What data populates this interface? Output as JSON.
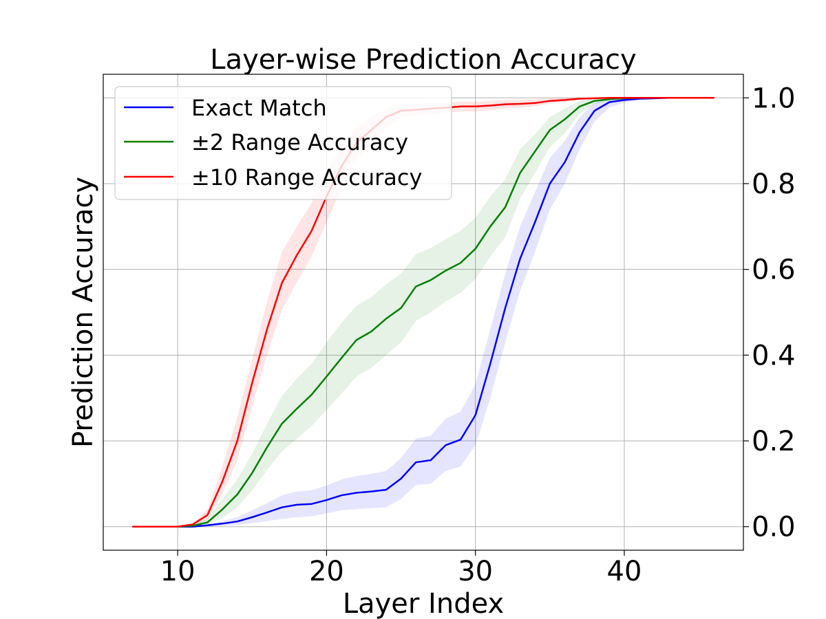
{
  "chart_data": {
    "type": "line",
    "title": "Layer-wise Prediction Accuracy",
    "xlabel": "Layer Index",
    "ylabel": "Prediction Accuracy",
    "xlim": [
      5,
      48
    ],
    "ylim": [
      -0.055,
      1.055
    ],
    "y_axis_side": "right",
    "grid": true,
    "legend_position": "top-left",
    "x_ticks": [
      10,
      20,
      30,
      40
    ],
    "x_tick_labels": [
      "10",
      "20",
      "30",
      "40"
    ],
    "y_ticks": [
      0.0,
      0.2,
      0.4,
      0.6,
      0.8,
      1.0
    ],
    "y_tick_labels": [
      "0.0",
      "0.2",
      "0.4",
      "0.6",
      "0.8",
      "1.0"
    ],
    "x": [
      7,
      8,
      9,
      10,
      11,
      12,
      13,
      14,
      15,
      16,
      17,
      18,
      19,
      20,
      21,
      22,
      23,
      24,
      25,
      26,
      27,
      28,
      29,
      30,
      31,
      32,
      33,
      34,
      35,
      36,
      37,
      38,
      39,
      40,
      41,
      42,
      43,
      44,
      45,
      46
    ],
    "series": [
      {
        "name": "Exact Match",
        "color": "#0000ff",
        "band_color": "#0000ff",
        "values": [
          0,
          0,
          0,
          0,
          0,
          0.003,
          0.007,
          0.012,
          0.022,
          0.033,
          0.045,
          0.051,
          0.053,
          0.062,
          0.073,
          0.079,
          0.082,
          0.086,
          0.112,
          0.15,
          0.155,
          0.19,
          0.203,
          0.26,
          0.38,
          0.51,
          0.625,
          0.71,
          0.8,
          0.85,
          0.92,
          0.97,
          0.99,
          0.995,
          0.998,
          0.999,
          1.0,
          1.0,
          1.0,
          1.0
        ],
        "lower": [
          0,
          0,
          0,
          0,
          0,
          0.001,
          0.002,
          0.004,
          0.008,
          0.013,
          0.018,
          0.022,
          0.024,
          0.031,
          0.038,
          0.041,
          0.043,
          0.045,
          0.065,
          0.097,
          0.1,
          0.13,
          0.14,
          0.19,
          0.3,
          0.43,
          0.55,
          0.64,
          0.74,
          0.8,
          0.88,
          0.945,
          0.978,
          0.989,
          0.994,
          0.996,
          0.998,
          0.998,
          0.998,
          0.998
        ],
        "upper": [
          0,
          0,
          0,
          0,
          0.001,
          0.005,
          0.013,
          0.022,
          0.038,
          0.055,
          0.073,
          0.082,
          0.085,
          0.096,
          0.11,
          0.118,
          0.123,
          0.13,
          0.16,
          0.205,
          0.212,
          0.252,
          0.268,
          0.332,
          0.46,
          0.59,
          0.7,
          0.78,
          0.86,
          0.9,
          0.955,
          0.988,
          0.998,
          1.0,
          1.0,
          1.0,
          1.0,
          1.0,
          1.0,
          1.0
        ]
      },
      {
        "name": "±2 Range Accuracy",
        "color": "#008000",
        "band_color": "#008000",
        "values": [
          0,
          0,
          0,
          0,
          0.002,
          0.01,
          0.04,
          0.075,
          0.125,
          0.185,
          0.24,
          0.275,
          0.308,
          0.35,
          0.393,
          0.435,
          0.455,
          0.485,
          0.51,
          0.56,
          0.575,
          0.597,
          0.615,
          0.648,
          0.7,
          0.745,
          0.825,
          0.875,
          0.925,
          0.95,
          0.98,
          0.993,
          0.997,
          0.999,
          1.0,
          1.0,
          1.0,
          1.0,
          1.0,
          1.0
        ],
        "lower": [
          0,
          0,
          0,
          0,
          0.001,
          0.005,
          0.02,
          0.045,
          0.085,
          0.132,
          0.175,
          0.205,
          0.235,
          0.272,
          0.31,
          0.35,
          0.37,
          0.4,
          0.43,
          0.48,
          0.5,
          0.525,
          0.545,
          0.578,
          0.63,
          0.675,
          0.765,
          0.825,
          0.885,
          0.918,
          0.962,
          0.985,
          0.993,
          0.997,
          0.999,
          0.999,
          0.999,
          0.999,
          0.999,
          0.999
        ],
        "upper": [
          0,
          0,
          0,
          0,
          0.004,
          0.018,
          0.065,
          0.11,
          0.17,
          0.24,
          0.305,
          0.345,
          0.38,
          0.43,
          0.475,
          0.515,
          0.535,
          0.565,
          0.59,
          0.635,
          0.65,
          0.67,
          0.69,
          0.72,
          0.77,
          0.81,
          0.88,
          0.915,
          0.955,
          0.975,
          0.993,
          0.999,
          1.0,
          1.0,
          1.0,
          1.0,
          1.0,
          1.0,
          1.0,
          1.0
        ]
      },
      {
        "name": "±10 Range Accuracy",
        "color": "#ff0000",
        "band_color": "#ff0000",
        "values": [
          0,
          0,
          0,
          0,
          0.005,
          0.027,
          0.105,
          0.2,
          0.335,
          0.46,
          0.568,
          0.633,
          0.69,
          0.77,
          0.84,
          0.895,
          0.925,
          0.955,
          0.97,
          0.972,
          0.975,
          0.977,
          0.98,
          0.98,
          0.982,
          0.985,
          0.986,
          0.988,
          0.993,
          0.995,
          0.998,
          0.999,
          1.0,
          1.0,
          1.0,
          1.0,
          1.0,
          1.0,
          1.0,
          1.0
        ],
        "lower": [
          0,
          0,
          0,
          0,
          0.003,
          0.015,
          0.075,
          0.155,
          0.28,
          0.4,
          0.505,
          0.57,
          0.63,
          0.71,
          0.79,
          0.855,
          0.89,
          0.93,
          0.955,
          0.958,
          0.962,
          0.965,
          0.968,
          0.969,
          0.971,
          0.975,
          0.977,
          0.98,
          0.987,
          0.99,
          0.995,
          0.997,
          0.998,
          0.998,
          0.998,
          0.998,
          0.998,
          0.998,
          0.998,
          0.998
        ],
        "upper": [
          0,
          0,
          0,
          0,
          0.008,
          0.04,
          0.14,
          0.255,
          0.39,
          0.525,
          0.64,
          0.7,
          0.755,
          0.83,
          0.885,
          0.93,
          0.955,
          0.975,
          0.985,
          0.986,
          0.988,
          0.989,
          0.991,
          0.991,
          0.993,
          0.995,
          0.996,
          0.997,
          0.999,
          1.0,
          1.0,
          1.0,
          1.0,
          1.0,
          1.0,
          1.0,
          1.0,
          1.0,
          1.0,
          1.0
        ]
      }
    ]
  }
}
